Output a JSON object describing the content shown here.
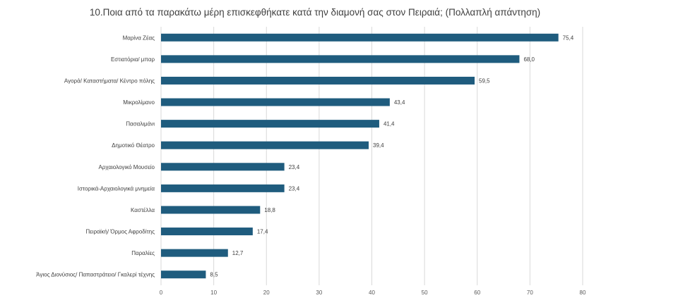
{
  "chart_data": {
    "type": "bar",
    "orientation": "horizontal",
    "title": "10.Ποια από τα παρακάτω μέρη επισκεφθήκατε κατά την διαμονή σας στον Πειραιά; (Πολλαπλή απάντηση)",
    "categories": [
      "Μαρίνα Ζέας",
      "Εστιατόρια/ μπαρ",
      "Αγορά/ Καταστήματα/ Κέντρο πόλης",
      "Μικρολίμανο",
      "Πασαλιμάνι",
      "Δημοτικό Θέατρο",
      "Αρχαιολογικό Μουσείο",
      "Ιστορικά-Αρχαιολογικά μνημεία",
      "Καστέλλα",
      "Πειραϊκή/ Όρμος Αφροδίτης",
      "Παραλίες",
      "Άγιος Διονύσιος/ Παπαστράτειο/ Γκαλερί τέχνης"
    ],
    "values": [
      75.4,
      68.0,
      59.5,
      43.4,
      41.4,
      39.4,
      23.4,
      23.4,
      18.8,
      17.4,
      12.7,
      8.5
    ],
    "value_labels": [
      "75,4",
      "68,0",
      "59,5",
      "43,4",
      "41,4",
      "39,4",
      "23,4",
      "23,4",
      "18,8",
      "17,4",
      "12,7",
      "8,5"
    ],
    "xlim": [
      0,
      80
    ],
    "xticks": [
      0,
      10,
      20,
      30,
      40,
      50,
      60,
      70,
      80
    ],
    "grid": "vertical",
    "legend": "none",
    "bar_color": "#1F5C7E",
    "grid_color": "#D9D9D9"
  }
}
